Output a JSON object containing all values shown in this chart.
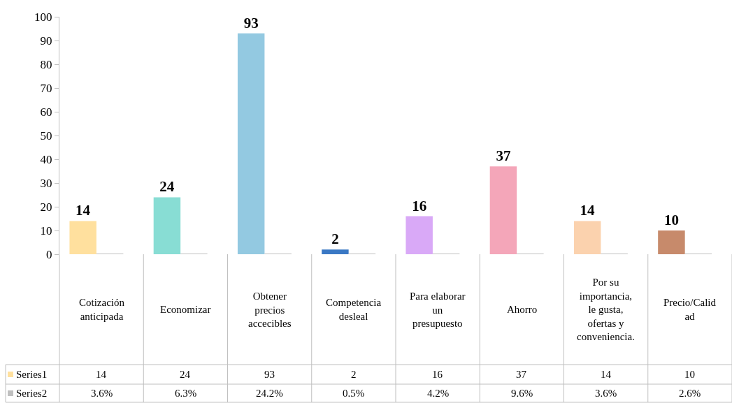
{
  "chart_data": {
    "type": "bar",
    "categories": [
      "Cotización anticipada",
      "Economizar",
      "Obtener precios accecibles",
      "Competencia desleal",
      "Para elaborar un presupuesto",
      "Ahorro",
      "Por su importancia, le gusta, ofertas y conveniencia.",
      "Precio/Calidad"
    ],
    "series": [
      {
        "name": "Series1",
        "colors": [
          "#ffe09e",
          "#88ddd4",
          "#93c9e1",
          "#3a78c4",
          "#d9a9f7",
          "#f4a6b9",
          "#fbd2ae",
          "#c78a6b"
        ],
        "values": [
          14,
          24,
          93,
          2,
          16,
          37,
          14,
          10
        ],
        "value_labels": [
          "14",
          "24",
          "93",
          "2",
          "16",
          "37",
          "14",
          "10"
        ],
        "data_labels": true
      },
      {
        "name": "Series2",
        "color": "#bfbfbf",
        "values": [
          0.036,
          0.063,
          0.242,
          0.005,
          0.042,
          0.096,
          0.036,
          0.026
        ],
        "value_labels": [
          "3.6%",
          "6.3%",
          "24.2%",
          "0.5%",
          "4.2%",
          "9.6%",
          "3.6%",
          "2.6%"
        ]
      }
    ],
    "ylim": [
      0,
      100
    ],
    "yticks": [
      0,
      10,
      20,
      30,
      40,
      50,
      60,
      70,
      80,
      90,
      100
    ],
    "grid": false,
    "legend": "bottom left"
  }
}
